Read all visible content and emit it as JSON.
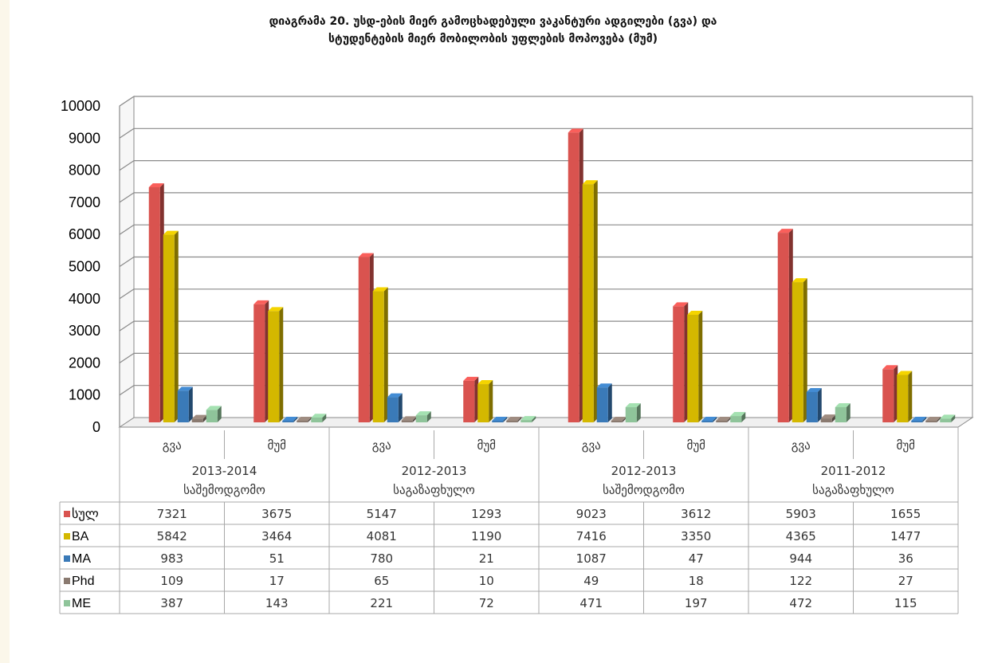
{
  "title_line1": "დიაგრამა 20. უსდ-ების მიერ გამოცხადებული ვაკანტური ადგილები (გვა) და",
  "title_line2": "სტუდენტების მიერ მობილობის უფლების მოპოვება (მუმ)",
  "chart_data": {
    "type": "bar",
    "title": "დიაგრამა 20. უსდ-ების მიერ გამოცხადებული ვაკანტური ადგილები (გვა) და სტუდენტების მიერ მობილობის უფლების მოპოვება (მუმ)",
    "ylim": [
      0,
      10000
    ],
    "yticks": [
      "0",
      "1000",
      "2000",
      "3000",
      "4000",
      "5000",
      "6000",
      "7000",
      "8000",
      "9000",
      "10000"
    ],
    "groups": [
      {
        "period": "2013-2014",
        "season": "საშემოდგომო"
      },
      {
        "period": "2012-2013",
        "season": "საგაზაფხულო"
      },
      {
        "period": "2012-2013",
        "season": "საშემოდგომო"
      },
      {
        "period": "2011-2012",
        "season": "საგაზაფხულო"
      }
    ],
    "categories": [
      "გვა",
      "მუმ",
      "გვა",
      "მუმ",
      "გვა",
      "მუმ",
      "გვა",
      "მუმ"
    ],
    "series": [
      {
        "name": "სულ",
        "color": "#d9534f",
        "values": [
          7321,
          3675,
          5147,
          1293,
          9023,
          3612,
          5903,
          1655
        ]
      },
      {
        "name": "BA",
        "color": "#d4b800",
        "values": [
          5842,
          3464,
          4081,
          1190,
          7416,
          3350,
          4365,
          1477
        ]
      },
      {
        "name": "MA",
        "color": "#3a7ab8",
        "values": [
          983,
          51,
          780,
          21,
          1087,
          47,
          944,
          36
        ]
      },
      {
        "name": "Phd",
        "color": "#8a7a70",
        "values": [
          109,
          17,
          65,
          10,
          49,
          18,
          122,
          27
        ]
      },
      {
        "name": "ME",
        "color": "#8fc49a",
        "values": [
          387,
          143,
          221,
          72,
          471,
          197,
          472,
          115
        ]
      }
    ],
    "grid": true,
    "legend": "table"
  }
}
